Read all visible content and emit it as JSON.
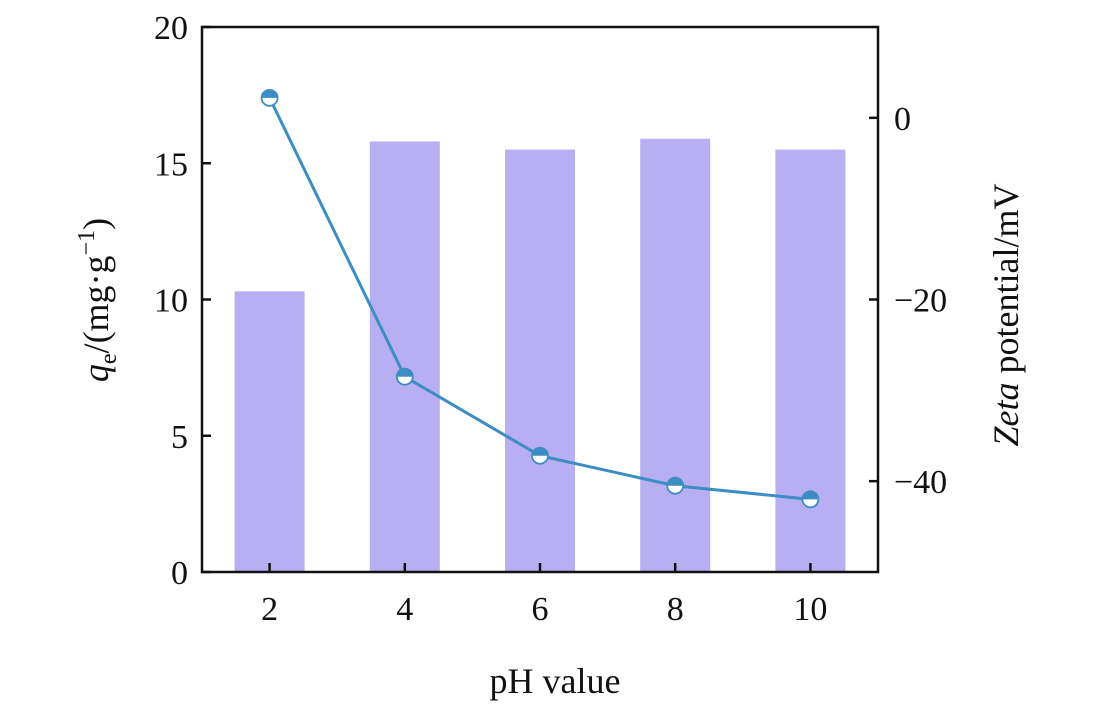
{
  "chart_data": {
    "type": "bar",
    "categories": [
      "2",
      "4",
      "6",
      "8",
      "10"
    ],
    "series": [
      {
        "axis": "left",
        "chart_type": "bar",
        "color": "#b8aef2",
        "values": [
          10.3,
          15.8,
          15.5,
          15.9,
          15.5
        ]
      },
      {
        "axis": "right",
        "chart_type": "line",
        "color": "#3c8dc4",
        "marker": "half-filled-circle",
        "values": [
          2.2,
          -28.5,
          -37.2,
          -40.5,
          -42.0
        ]
      }
    ],
    "xlabel": "pH value",
    "ylabel": {
      "symbol": "q",
      "subscript": "e",
      "unit_prefix": "/(mg·g",
      "superscript": "−1",
      "unit_suffix": ")"
    },
    "y2label": {
      "italic": "Zeta",
      "rest": " potential/mV"
    },
    "ylim": [
      0,
      20
    ],
    "y2lim": [
      -50,
      10
    ],
    "yticks": [
      "0",
      "5",
      "10",
      "15",
      "20"
    ],
    "y2ticks": [
      "0",
      "−20",
      "−40"
    ],
    "xticks": [
      "2",
      "4",
      "6",
      "8",
      "10"
    ],
    "grid": false,
    "legend": "none"
  }
}
